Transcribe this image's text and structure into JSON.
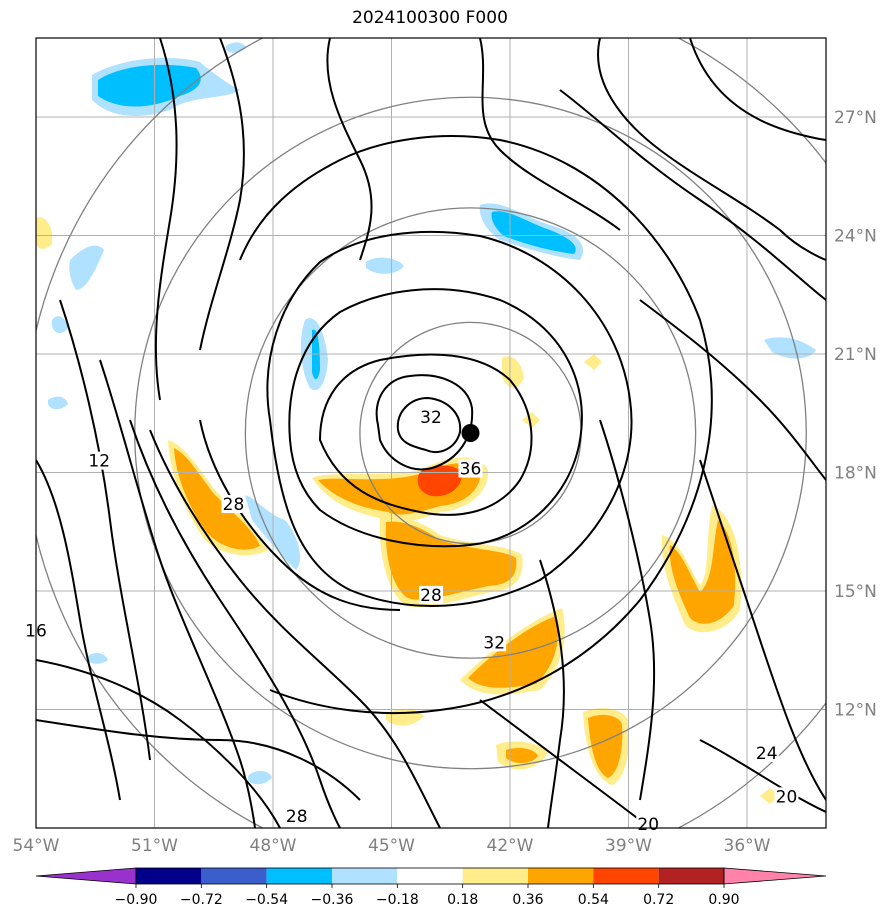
{
  "title": "2024100300 F000",
  "map": {
    "lon_range": [
      -54.0,
      -34.0
    ],
    "lat_range": [
      9.0,
      29.0
    ],
    "lon_ticks": [
      {
        "value": -54,
        "label": "54°W"
      },
      {
        "value": -51,
        "label": "51°W"
      },
      {
        "value": -48,
        "label": "48°W"
      },
      {
        "value": -45,
        "label": "45°W"
      },
      {
        "value": -42,
        "label": "42°W"
      },
      {
        "value": -39,
        "label": "39°W"
      },
      {
        "value": -36,
        "label": "36°W"
      }
    ],
    "lat_ticks": [
      {
        "value": 12,
        "label": "12°N"
      },
      {
        "value": 15,
        "label": "15°N"
      },
      {
        "value": 18,
        "label": "18°N"
      },
      {
        "value": 21,
        "label": "21°N"
      },
      {
        "value": 24,
        "label": "24°N"
      },
      {
        "value": 27,
        "label": "27°N"
      }
    ],
    "grid": true,
    "storm_center": {
      "lon": -43.0,
      "lat": 19.0
    },
    "range_rings_deg": [
      2.8,
      5.7,
      8.5,
      11.3
    ],
    "contour_labels": [
      {
        "text": "12",
        "lon": -52.4,
        "lat": 18.2
      },
      {
        "text": "16",
        "lon": -54.0,
        "lat": 13.9
      },
      {
        "text": "28",
        "lon": -49.0,
        "lat": 17.1
      },
      {
        "text": "28",
        "lon": -44.0,
        "lat": 14.8
      },
      {
        "text": "32",
        "lon": -44.0,
        "lat": 19.3
      },
      {
        "text": "36",
        "lon": -43.0,
        "lat": 18.0
      },
      {
        "text": "32",
        "lon": -42.4,
        "lat": 13.6
      },
      {
        "text": "28",
        "lon": -47.4,
        "lat": 9.2
      },
      {
        "text": "24",
        "lon": -35.5,
        "lat": 10.8
      },
      {
        "text": "20",
        "lon": -35.0,
        "lat": 9.7
      },
      {
        "text": "20",
        "lon": -38.5,
        "lat": 9.0
      }
    ]
  },
  "colorbar": {
    "levels": [
      "−0.90",
      "−0.72",
      "−0.54",
      "−0.36",
      "−0.18",
      "0.18",
      "0.36",
      "0.54",
      "0.72",
      "0.90"
    ],
    "colors": [
      "#9932cc",
      "#00008b",
      "#3a5fcd",
      "#00bfff",
      "#b0e2ff",
      "#ffffff",
      "#ffec8b",
      "#ffa500",
      "#ff4500",
      "#b22222",
      "#ff82ab"
    ]
  }
}
